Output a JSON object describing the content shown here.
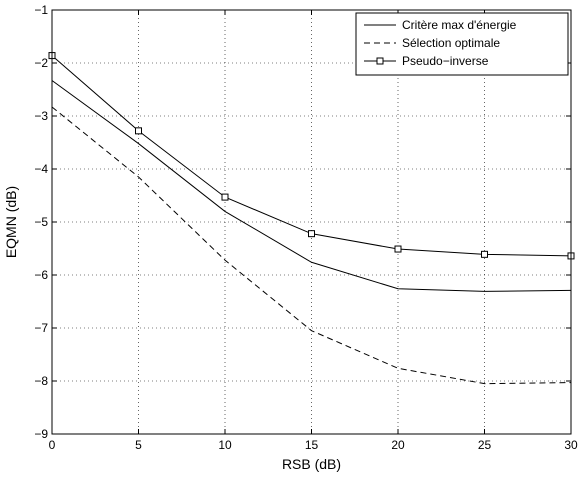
{
  "chart_data": {
    "type": "line",
    "title": "",
    "xlabel": "RSB (dB)",
    "ylabel": "EQMN (dB)",
    "xlim": [
      0,
      30
    ],
    "ylim": [
      -9,
      -1
    ],
    "xticks": [
      0,
      5,
      10,
      15,
      20,
      25,
      30
    ],
    "yticks": [
      -9,
      -8,
      -7,
      -6,
      -5,
      -4,
      -3,
      -2,
      -1
    ],
    "grid": true,
    "legend_position": "top-right",
    "x": [
      0,
      5,
      10,
      15,
      20,
      25,
      30
    ],
    "series": [
      {
        "name": "Critère max d'énergie",
        "line_style": "solid",
        "marker": "none",
        "color": "#000000",
        "values": [
          -2.33,
          -3.52,
          -4.8,
          -5.76,
          -6.26,
          -6.31,
          -6.29
        ]
      },
      {
        "name": "Sélection optimale",
        "line_style": "dashed",
        "marker": "none",
        "color": "#000000",
        "values": [
          -2.83,
          -4.15,
          -5.72,
          -7.05,
          -7.76,
          -8.05,
          -8.03
        ]
      },
      {
        "name": "Pseudo−inverse",
        "line_style": "solid",
        "marker": "square",
        "color": "#000000",
        "values": [
          -1.86,
          -3.28,
          -4.53,
          -5.22,
          -5.51,
          -5.61,
          -5.64
        ]
      }
    ]
  }
}
